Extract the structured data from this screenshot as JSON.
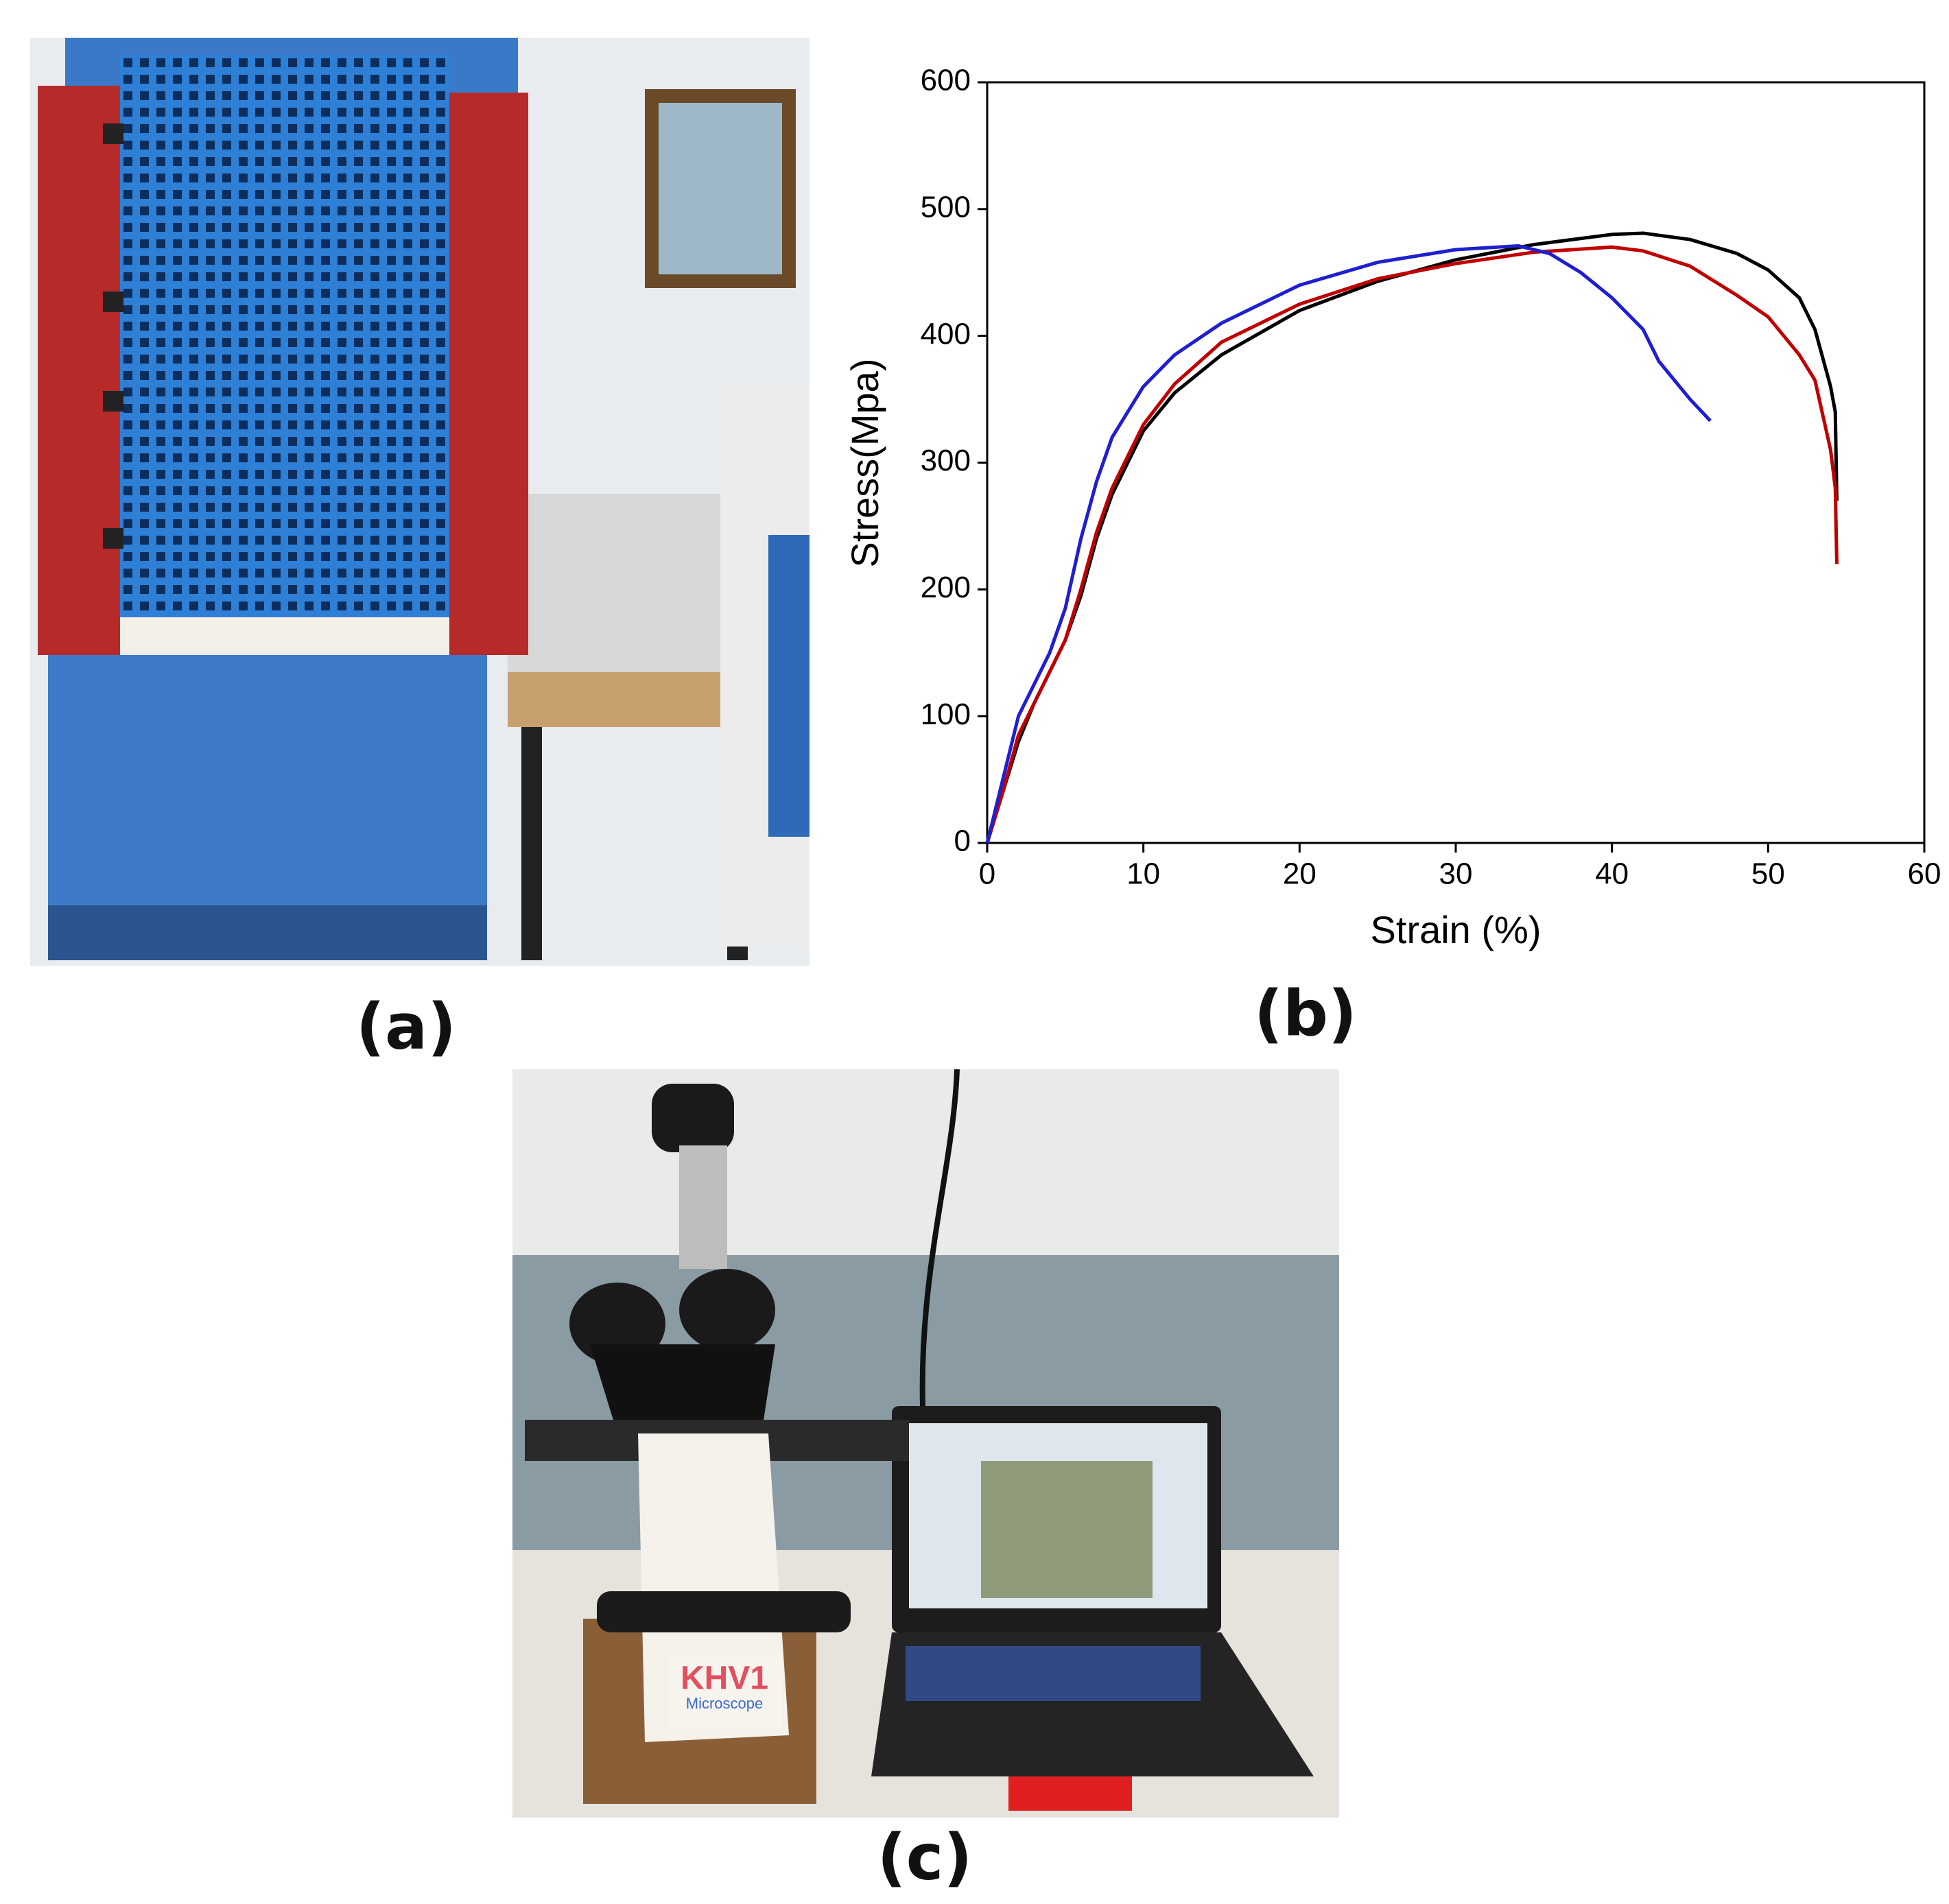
{
  "chart_data": {
    "type": "line",
    "xlabel": "Strain (%)",
    "ylabel": "Stress(Mpa)",
    "xlim": [
      0,
      60
    ],
    "ylim": [
      0,
      600
    ],
    "xticks": [
      0,
      10,
      20,
      30,
      40,
      50,
      60
    ],
    "yticks": [
      0,
      100,
      200,
      300,
      400,
      500,
      600
    ],
    "grid": false,
    "series": [
      {
        "color": "#000000",
        "x": [
          0,
          1,
          2,
          3,
          5,
          6,
          7,
          8,
          10,
          12,
          15,
          20,
          25,
          30,
          35,
          40,
          42,
          45,
          48,
          50,
          52,
          53,
          54,
          54.3,
          54.4
        ],
        "values": [
          0,
          40,
          80,
          110,
          160,
          195,
          240,
          275,
          325,
          355,
          385,
          420,
          443,
          460,
          472,
          480,
          481,
          476,
          465,
          452,
          430,
          405,
          360,
          340,
          270
        ]
      },
      {
        "color": "#c00000",
        "x": [
          0,
          1,
          2,
          3,
          5,
          6,
          7,
          8,
          10,
          12,
          15,
          20,
          25,
          30,
          35,
          40,
          42,
          45,
          48,
          50,
          52,
          53,
          54,
          54.3,
          54.4
        ],
        "values": [
          0,
          40,
          85,
          110,
          160,
          200,
          245,
          280,
          330,
          362,
          395,
          425,
          445,
          457,
          466,
          470,
          467,
          455,
          432,
          415,
          385,
          365,
          310,
          280,
          220
        ]
      },
      {
        "color": "#1f1fd0",
        "x": [
          0,
          1,
          2,
          3,
          4,
          5,
          6,
          7,
          8,
          10,
          12,
          15,
          20,
          25,
          30,
          34,
          36,
          38,
          40,
          42,
          43,
          44,
          45,
          46.3
        ],
        "values": [
          0,
          50,
          100,
          125,
          150,
          185,
          240,
          285,
          320,
          360,
          385,
          410,
          440,
          458,
          468,
          471,
          465,
          450,
          430,
          405,
          380,
          365,
          350,
          333
        ]
      }
    ]
  },
  "panel_labels": [
    "(a)",
    "(b)",
    "(c)"
  ],
  "photo_texts": [
    "KHV1",
    "Microscope"
  ]
}
